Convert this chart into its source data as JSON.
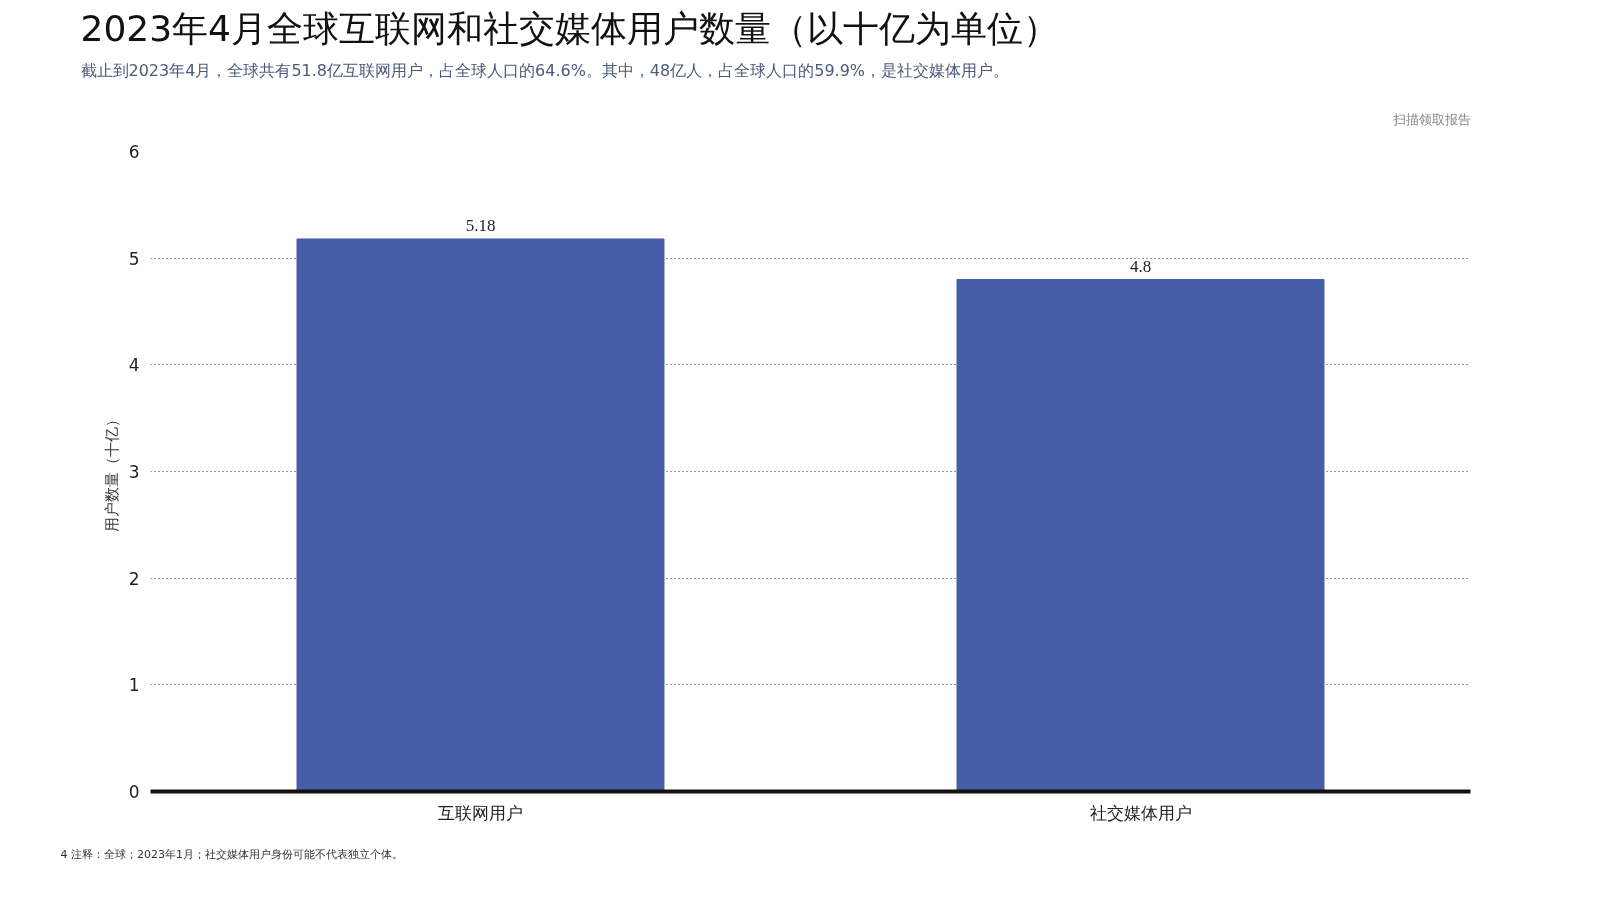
{
  "chart_data": {
    "type": "bar",
    "title": "2023年4月全球互联网和社交媒体用户数量（以十亿为单位）",
    "subtitle": "截止到2023年4月，全球共有51.8亿互联网用户，占全球人口的64.6%。其中，48亿人，占全球人口的59.9%，是社交媒体用户。",
    "ylabel": "用户数量（十亿）",
    "categories": [
      "互联网用户",
      "社交媒体用户"
    ],
    "values": [
      5.18,
      4.8
    ],
    "color": "#455ea5",
    "ylim": [
      0,
      6
    ],
    "yticks": [
      0,
      1,
      2,
      3,
      4,
      5,
      6
    ],
    "grid": "y",
    "data_labels": true,
    "annotations": [
      "扫描领取报告",
      "4  注释：全球；2023年1月；社交媒体用户身份可能不代表独立个体。"
    ]
  }
}
